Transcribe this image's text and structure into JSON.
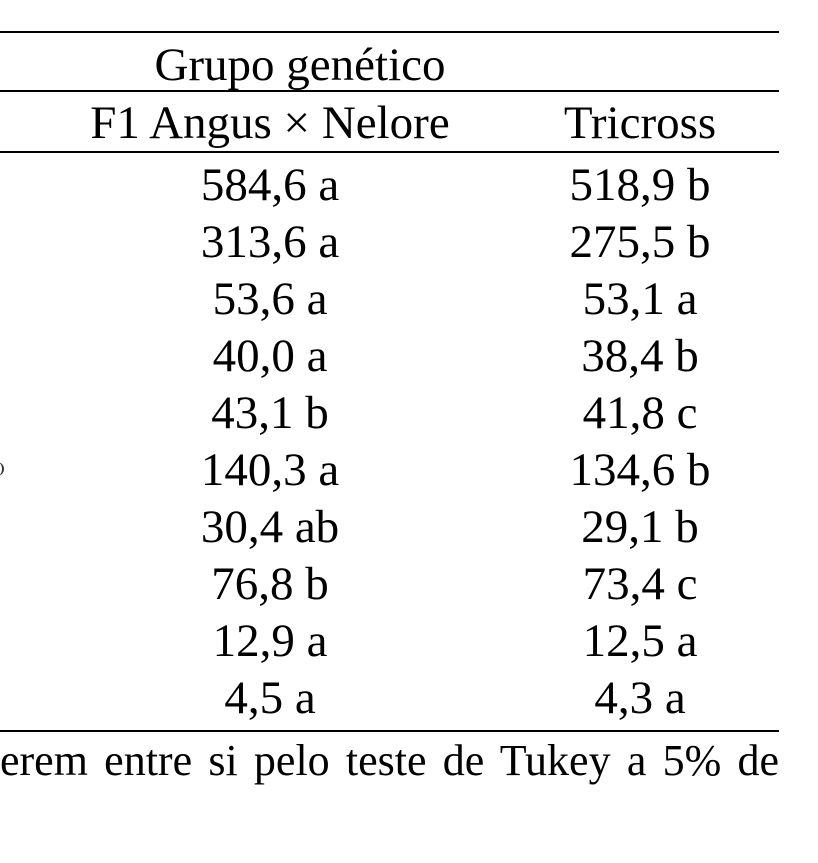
{
  "table": {
    "group_header": "Grupo genético",
    "columns": [
      "F1 Angus × Nelore",
      "Tricross"
    ],
    "rows": [
      [
        "584,6 a",
        "518,9 b"
      ],
      [
        "313,6 a",
        "275,5 b"
      ],
      [
        "53,6 a",
        "53,1 a"
      ],
      [
        "40,0 a",
        "38,4 b"
      ],
      [
        "43,1 b",
        "41,8 c"
      ],
      [
        "140,3 a",
        "134,6 b"
      ],
      [
        "30,4 ab",
        "29,1 b"
      ],
      [
        "76,8 b",
        "73,4 c"
      ],
      [
        "12,9 a",
        "12,5 a"
      ],
      [
        "4,5 a",
        "4,3 a"
      ]
    ]
  },
  "footnote": "erem entre si pelo teste de Tukey a 5% de"
}
